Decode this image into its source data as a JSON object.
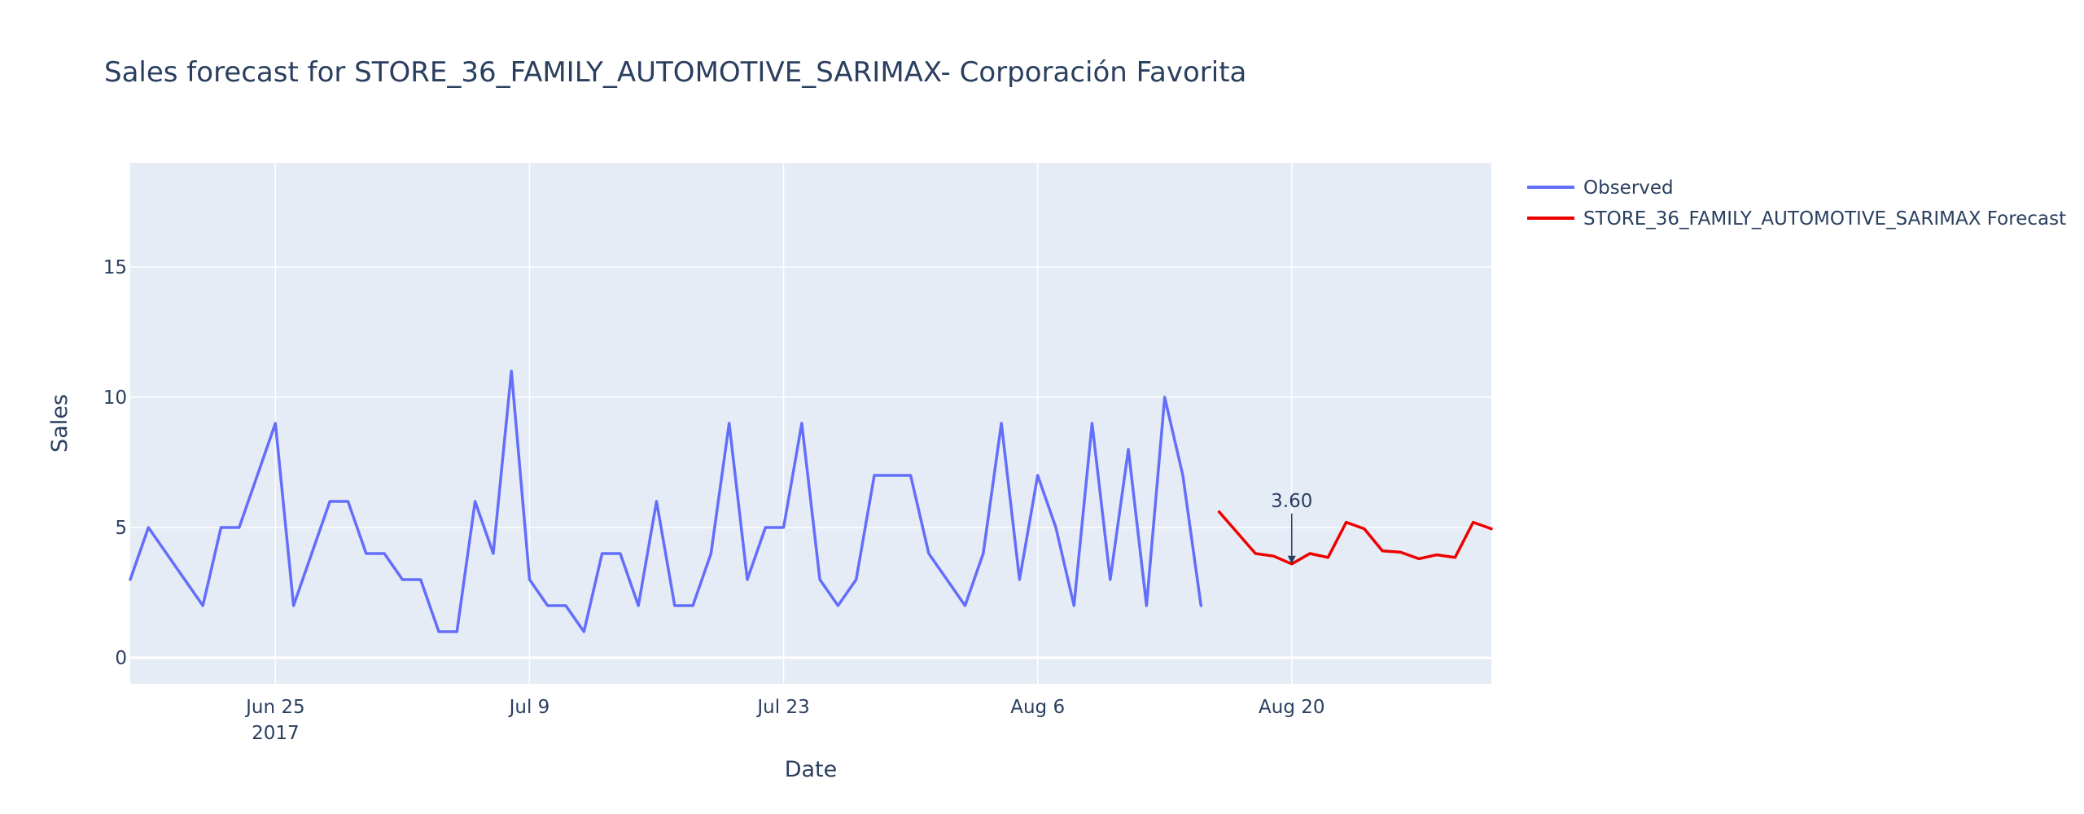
{
  "chart_data": {
    "type": "line",
    "title": "Sales forecast for STORE_36_FAMILY_AUTOMOTIVE_SARIMAX- Corporación Favorita",
    "xlabel": "Date",
    "ylabel": "Sales",
    "x_range": [
      "2017-06-17",
      "2017-08-31"
    ],
    "ylim": [
      -1,
      19
    ],
    "yticks": [
      0,
      5,
      10,
      15
    ],
    "xticks": [
      {
        "date": "2017-06-25",
        "label": "Jun 25",
        "sublabel": "2017"
      },
      {
        "date": "2017-07-09",
        "label": "Jul 9",
        "sublabel": ""
      },
      {
        "date": "2017-07-23",
        "label": "Jul 23",
        "sublabel": ""
      },
      {
        "date": "2017-08-06",
        "label": "Aug 6",
        "sublabel": ""
      },
      {
        "date": "2017-08-20",
        "label": "Aug 20",
        "sublabel": ""
      }
    ],
    "grid": true,
    "legend_position": "top-right",
    "colors": {
      "plot_bg": "#e5ecf6",
      "grid": "#ffffff",
      "observed": "#636efa",
      "forecast": "#ee0000",
      "text": "#2a3f5f"
    },
    "series": [
      {
        "name": "Observed",
        "color": "#636efa",
        "points": [
          {
            "x": "2017-06-17",
            "y": 3
          },
          {
            "x": "2017-06-18",
            "y": 5
          },
          {
            "x": "2017-06-19",
            "y": 4
          },
          {
            "x": "2017-06-20",
            "y": 3
          },
          {
            "x": "2017-06-21",
            "y": 2
          },
          {
            "x": "2017-06-22",
            "y": 5
          },
          {
            "x": "2017-06-23",
            "y": 5
          },
          {
            "x": "2017-06-24",
            "y": 7
          },
          {
            "x": "2017-06-25",
            "y": 9
          },
          {
            "x": "2017-06-26",
            "y": 2
          },
          {
            "x": "2017-06-27",
            "y": 4
          },
          {
            "x": "2017-06-28",
            "y": 6
          },
          {
            "x": "2017-06-29",
            "y": 6
          },
          {
            "x": "2017-06-30",
            "y": 4
          },
          {
            "x": "2017-07-01",
            "y": 4
          },
          {
            "x": "2017-07-02",
            "y": 3
          },
          {
            "x": "2017-07-03",
            "y": 3
          },
          {
            "x": "2017-07-04",
            "y": 1
          },
          {
            "x": "2017-07-05",
            "y": 1
          },
          {
            "x": "2017-07-06",
            "y": 6
          },
          {
            "x": "2017-07-07",
            "y": 4
          },
          {
            "x": "2017-07-08",
            "y": 11
          },
          {
            "x": "2017-07-09",
            "y": 3
          },
          {
            "x": "2017-07-10",
            "y": 2
          },
          {
            "x": "2017-07-11",
            "y": 2
          },
          {
            "x": "2017-07-12",
            "y": 1
          },
          {
            "x": "2017-07-13",
            "y": 4
          },
          {
            "x": "2017-07-14",
            "y": 4
          },
          {
            "x": "2017-07-15",
            "y": 2
          },
          {
            "x": "2017-07-16",
            "y": 6
          },
          {
            "x": "2017-07-17",
            "y": 2
          },
          {
            "x": "2017-07-18",
            "y": 2
          },
          {
            "x": "2017-07-19",
            "y": 4
          },
          {
            "x": "2017-07-20",
            "y": 9
          },
          {
            "x": "2017-07-21",
            "y": 3
          },
          {
            "x": "2017-07-22",
            "y": 5
          },
          {
            "x": "2017-07-23",
            "y": 5
          },
          {
            "x": "2017-07-24",
            "y": 9
          },
          {
            "x": "2017-07-25",
            "y": 3
          },
          {
            "x": "2017-07-26",
            "y": 2
          },
          {
            "x": "2017-07-27",
            "y": 3
          },
          {
            "x": "2017-07-28",
            "y": 7
          },
          {
            "x": "2017-07-29",
            "y": 7
          },
          {
            "x": "2017-07-30",
            "y": 7
          },
          {
            "x": "2017-07-31",
            "y": 4
          },
          {
            "x": "2017-08-01",
            "y": 3
          },
          {
            "x": "2017-08-02",
            "y": 2
          },
          {
            "x": "2017-08-03",
            "y": 4
          },
          {
            "x": "2017-08-04",
            "y": 9
          },
          {
            "x": "2017-08-05",
            "y": 3
          },
          {
            "x": "2017-08-06",
            "y": 7
          },
          {
            "x": "2017-08-07",
            "y": 5
          },
          {
            "x": "2017-08-08",
            "y": 2
          },
          {
            "x": "2017-08-09",
            "y": 9
          },
          {
            "x": "2017-08-10",
            "y": 3
          },
          {
            "x": "2017-08-11",
            "y": 8
          },
          {
            "x": "2017-08-12",
            "y": 2
          },
          {
            "x": "2017-08-13",
            "y": 10
          },
          {
            "x": "2017-08-14",
            "y": 7
          },
          {
            "x": "2017-08-15",
            "y": 2
          }
        ]
      },
      {
        "name": "STORE_36_FAMILY_AUTOMOTIVE_SARIMAX Forecast",
        "color": "#ee0000",
        "points": [
          {
            "x": "2017-08-16",
            "y": 5.6
          },
          {
            "x": "2017-08-17",
            "y": 4.8
          },
          {
            "x": "2017-08-18",
            "y": 4.0
          },
          {
            "x": "2017-08-19",
            "y": 3.9
          },
          {
            "x": "2017-08-20",
            "y": 3.6
          },
          {
            "x": "2017-08-21",
            "y": 4.0
          },
          {
            "x": "2017-08-22",
            "y": 3.85
          },
          {
            "x": "2017-08-23",
            "y": 5.2
          },
          {
            "x": "2017-08-24",
            "y": 4.95
          },
          {
            "x": "2017-08-25",
            "y": 4.1
          },
          {
            "x": "2017-08-26",
            "y": 4.05
          },
          {
            "x": "2017-08-27",
            "y": 3.8
          },
          {
            "x": "2017-08-28",
            "y": 3.95
          },
          {
            "x": "2017-08-29",
            "y": 3.85
          },
          {
            "x": "2017-08-30",
            "y": 5.2
          },
          {
            "x": "2017-08-31",
            "y": 4.95
          }
        ]
      }
    ],
    "annotations": [
      {
        "x": "2017-08-20",
        "y": 3.6,
        "text": "3.60"
      }
    ]
  }
}
